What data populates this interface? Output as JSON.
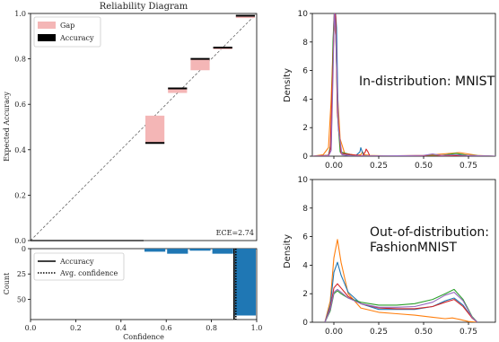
{
  "chart_data": [
    {
      "type": "bar",
      "id": "reliability",
      "title": "Reliability Diagram",
      "ylabel": "Expected Accuracy",
      "xlim": [
        0,
        1
      ],
      "ylim": [
        0,
        1
      ],
      "yticks": [
        "0.0",
        "0.2",
        "0.4",
        "0.6",
        "0.8",
        "1.0"
      ],
      "bin_edges": [
        0.5,
        0.6,
        0.7,
        0.8,
        0.9,
        1.0
      ],
      "accuracy": [
        0.43,
        0.67,
        0.8,
        0.85,
        0.99
      ],
      "confidence": [
        0.55,
        0.65,
        0.75,
        0.85,
        0.98
      ],
      "diagonal": true,
      "legend": [
        {
          "label": "Gap",
          "color": "#f4b6b6"
        },
        {
          "label": "Accuracy",
          "color": "#000000"
        }
      ],
      "annotation": "ECE=2.74",
      "colors": {
        "gap": "#f4b6b6",
        "accuracy": "#000000"
      }
    },
    {
      "type": "bar",
      "id": "count-histogram",
      "xlabel": "Confidence",
      "ylabel": "Count",
      "xlim": [
        0,
        1
      ],
      "ylim": [
        70,
        0
      ],
      "xticks": [
        "0.0",
        "0.2",
        "0.4",
        "0.6",
        "0.8",
        "1.0"
      ],
      "yticks": [
        "0",
        "25",
        "50"
      ],
      "bin_edges": [
        0.5,
        0.6,
        0.7,
        0.8,
        0.9,
        1.0
      ],
      "values": [
        3,
        5,
        2,
        5,
        66
      ],
      "bar_color": "#1f77b4",
      "avg_confidence": 0.9,
      "legend": [
        {
          "label": "Accuracy",
          "style": "solid"
        },
        {
          "label": "Avg. confidence",
          "style": "dotted"
        }
      ]
    },
    {
      "type": "line",
      "id": "density-mnist",
      "ylabel": "Density",
      "xlim": [
        -0.12,
        0.9
      ],
      "ylim": [
        0,
        10
      ],
      "xticks": [
        "0.00",
        "0.25",
        "0.50",
        "0.75"
      ],
      "yticks": [
        "0",
        "2",
        "4",
        "6",
        "8",
        "10"
      ],
      "annotation": "In-distribution: MNIST",
      "series": [
        {
          "color": "#ff7f0e",
          "x": [
            -0.12,
            -0.06,
            -0.03,
            -0.015,
            0.0,
            0.01,
            0.02,
            0.035,
            0.06,
            0.12,
            0.15,
            0.16,
            0.17,
            0.2,
            0.3,
            0.5,
            0.55,
            0.7,
            0.8,
            0.9
          ],
          "y": [
            0,
            0.1,
            0.6,
            4.0,
            9.3,
            8.5,
            4.5,
            1.2,
            0.2,
            0.05,
            0.1,
            0.3,
            0.1,
            0.05,
            0.02,
            0.05,
            0.1,
            0.25,
            0.05,
            0
          ]
        },
        {
          "color": "#1f77b4",
          "x": [
            -0.12,
            -0.03,
            -0.015,
            0.0,
            0.008,
            0.015,
            0.025,
            0.04,
            0.12,
            0.145,
            0.15,
            0.158,
            0.17,
            0.3,
            0.6,
            0.7,
            0.75,
            0.9
          ],
          "y": [
            0,
            0.05,
            0.8,
            9.5,
            10.5,
            9.0,
            2.0,
            0.2,
            0.02,
            0.3,
            0.6,
            0.3,
            0.02,
            0.0,
            0.0,
            0.1,
            0.05,
            0
          ]
        },
        {
          "color": "#2ca02c",
          "x": [
            -0.12,
            -0.03,
            -0.015,
            -0.005,
            0.003,
            0.01,
            0.02,
            0.035,
            0.12,
            0.4,
            0.6,
            0.68,
            0.75,
            0.9
          ],
          "y": [
            0,
            0.05,
            1.0,
            8.0,
            10.5,
            9.5,
            3.0,
            0.3,
            0.02,
            0.01,
            0.05,
            0.2,
            0.05,
            0
          ]
        },
        {
          "color": "#d62728",
          "x": [
            -0.12,
            -0.03,
            -0.02,
            -0.005,
            0.003,
            0.01,
            0.02,
            0.04,
            0.16,
            0.175,
            0.18,
            0.19,
            0.2,
            0.3,
            0.55,
            0.7,
            0.8,
            0.9
          ],
          "y": [
            0,
            0.05,
            0.5,
            6.5,
            10.5,
            9.8,
            3.0,
            0.2,
            0.02,
            0.3,
            0.5,
            0.3,
            0.02,
            0.0,
            0.0,
            0.05,
            0.02,
            0
          ]
        },
        {
          "color": "#9467bd",
          "x": [
            -0.12,
            -0.03,
            -0.015,
            -0.005,
            0.003,
            0.012,
            0.025,
            0.045,
            0.1,
            0.3,
            0.5,
            0.55,
            0.6,
            0.68,
            0.72,
            0.9
          ],
          "y": [
            0,
            0.02,
            0.4,
            5.5,
            10.5,
            8.0,
            2.0,
            0.1,
            0.01,
            0.02,
            0.05,
            0.15,
            0.05,
            0.1,
            0.05,
            0
          ]
        }
      ]
    },
    {
      "type": "line",
      "id": "density-fashion",
      "ylabel": "Density",
      "xlim": [
        -0.12,
        0.9
      ],
      "ylim": [
        0,
        10
      ],
      "xticks": [
        "0.00",
        "0.25",
        "0.50",
        "0.75"
      ],
      "yticks": [
        "0",
        "2",
        "4",
        "6",
        "8",
        "10"
      ],
      "annotation": "Out-of-distribution:\nFashionMNIST",
      "series": [
        {
          "color": "#ff7f0e",
          "x": [
            -0.05,
            -0.02,
            0.0,
            0.02,
            0.04,
            0.08,
            0.15,
            0.25,
            0.35,
            0.45,
            0.55,
            0.62,
            0.66,
            0.7,
            0.75,
            0.8
          ],
          "y": [
            0,
            1.5,
            4.5,
            5.8,
            4.2,
            2.0,
            1.0,
            0.7,
            0.6,
            0.5,
            0.35,
            0.25,
            0.3,
            0.2,
            0.05,
            0
          ]
        },
        {
          "color": "#1f77b4",
          "x": [
            -0.05,
            -0.02,
            0.0,
            0.02,
            0.04,
            0.08,
            0.15,
            0.25,
            0.35,
            0.45,
            0.55,
            0.62,
            0.67,
            0.72,
            0.77,
            0.8
          ],
          "y": [
            0,
            1.2,
            3.5,
            4.2,
            3.3,
            2.1,
            1.3,
            0.9,
            0.9,
            0.9,
            1.1,
            1.5,
            1.7,
            1.2,
            0.3,
            0
          ]
        },
        {
          "color": "#d62728",
          "x": [
            -0.05,
            -0.02,
            0.0,
            0.02,
            0.04,
            0.08,
            0.15,
            0.25,
            0.35,
            0.45,
            0.55,
            0.62,
            0.67,
            0.72,
            0.77,
            0.8
          ],
          "y": [
            0,
            1.0,
            2.4,
            2.7,
            2.4,
            1.8,
            1.3,
            1.0,
            0.95,
            0.95,
            1.1,
            1.4,
            1.6,
            1.1,
            0.3,
            0
          ]
        },
        {
          "color": "#2ca02c",
          "x": [
            -0.05,
            -0.02,
            0.0,
            0.02,
            0.04,
            0.08,
            0.15,
            0.25,
            0.35,
            0.45,
            0.55,
            0.62,
            0.67,
            0.72,
            0.77,
            0.8
          ],
          "y": [
            0,
            0.8,
            2.0,
            2.2,
            2.0,
            1.7,
            1.4,
            1.2,
            1.2,
            1.3,
            1.6,
            2.0,
            2.3,
            1.6,
            0.4,
            0
          ]
        },
        {
          "color": "#9467bd",
          "x": [
            -0.05,
            -0.02,
            0.0,
            0.02,
            0.04,
            0.08,
            0.15,
            0.25,
            0.35,
            0.45,
            0.55,
            0.62,
            0.67,
            0.72,
            0.77,
            0.8
          ],
          "y": [
            0,
            0.9,
            2.1,
            2.3,
            2.1,
            1.7,
            1.3,
            1.05,
            1.05,
            1.1,
            1.4,
            1.9,
            2.1,
            1.5,
            0.35,
            0
          ]
        }
      ]
    }
  ]
}
